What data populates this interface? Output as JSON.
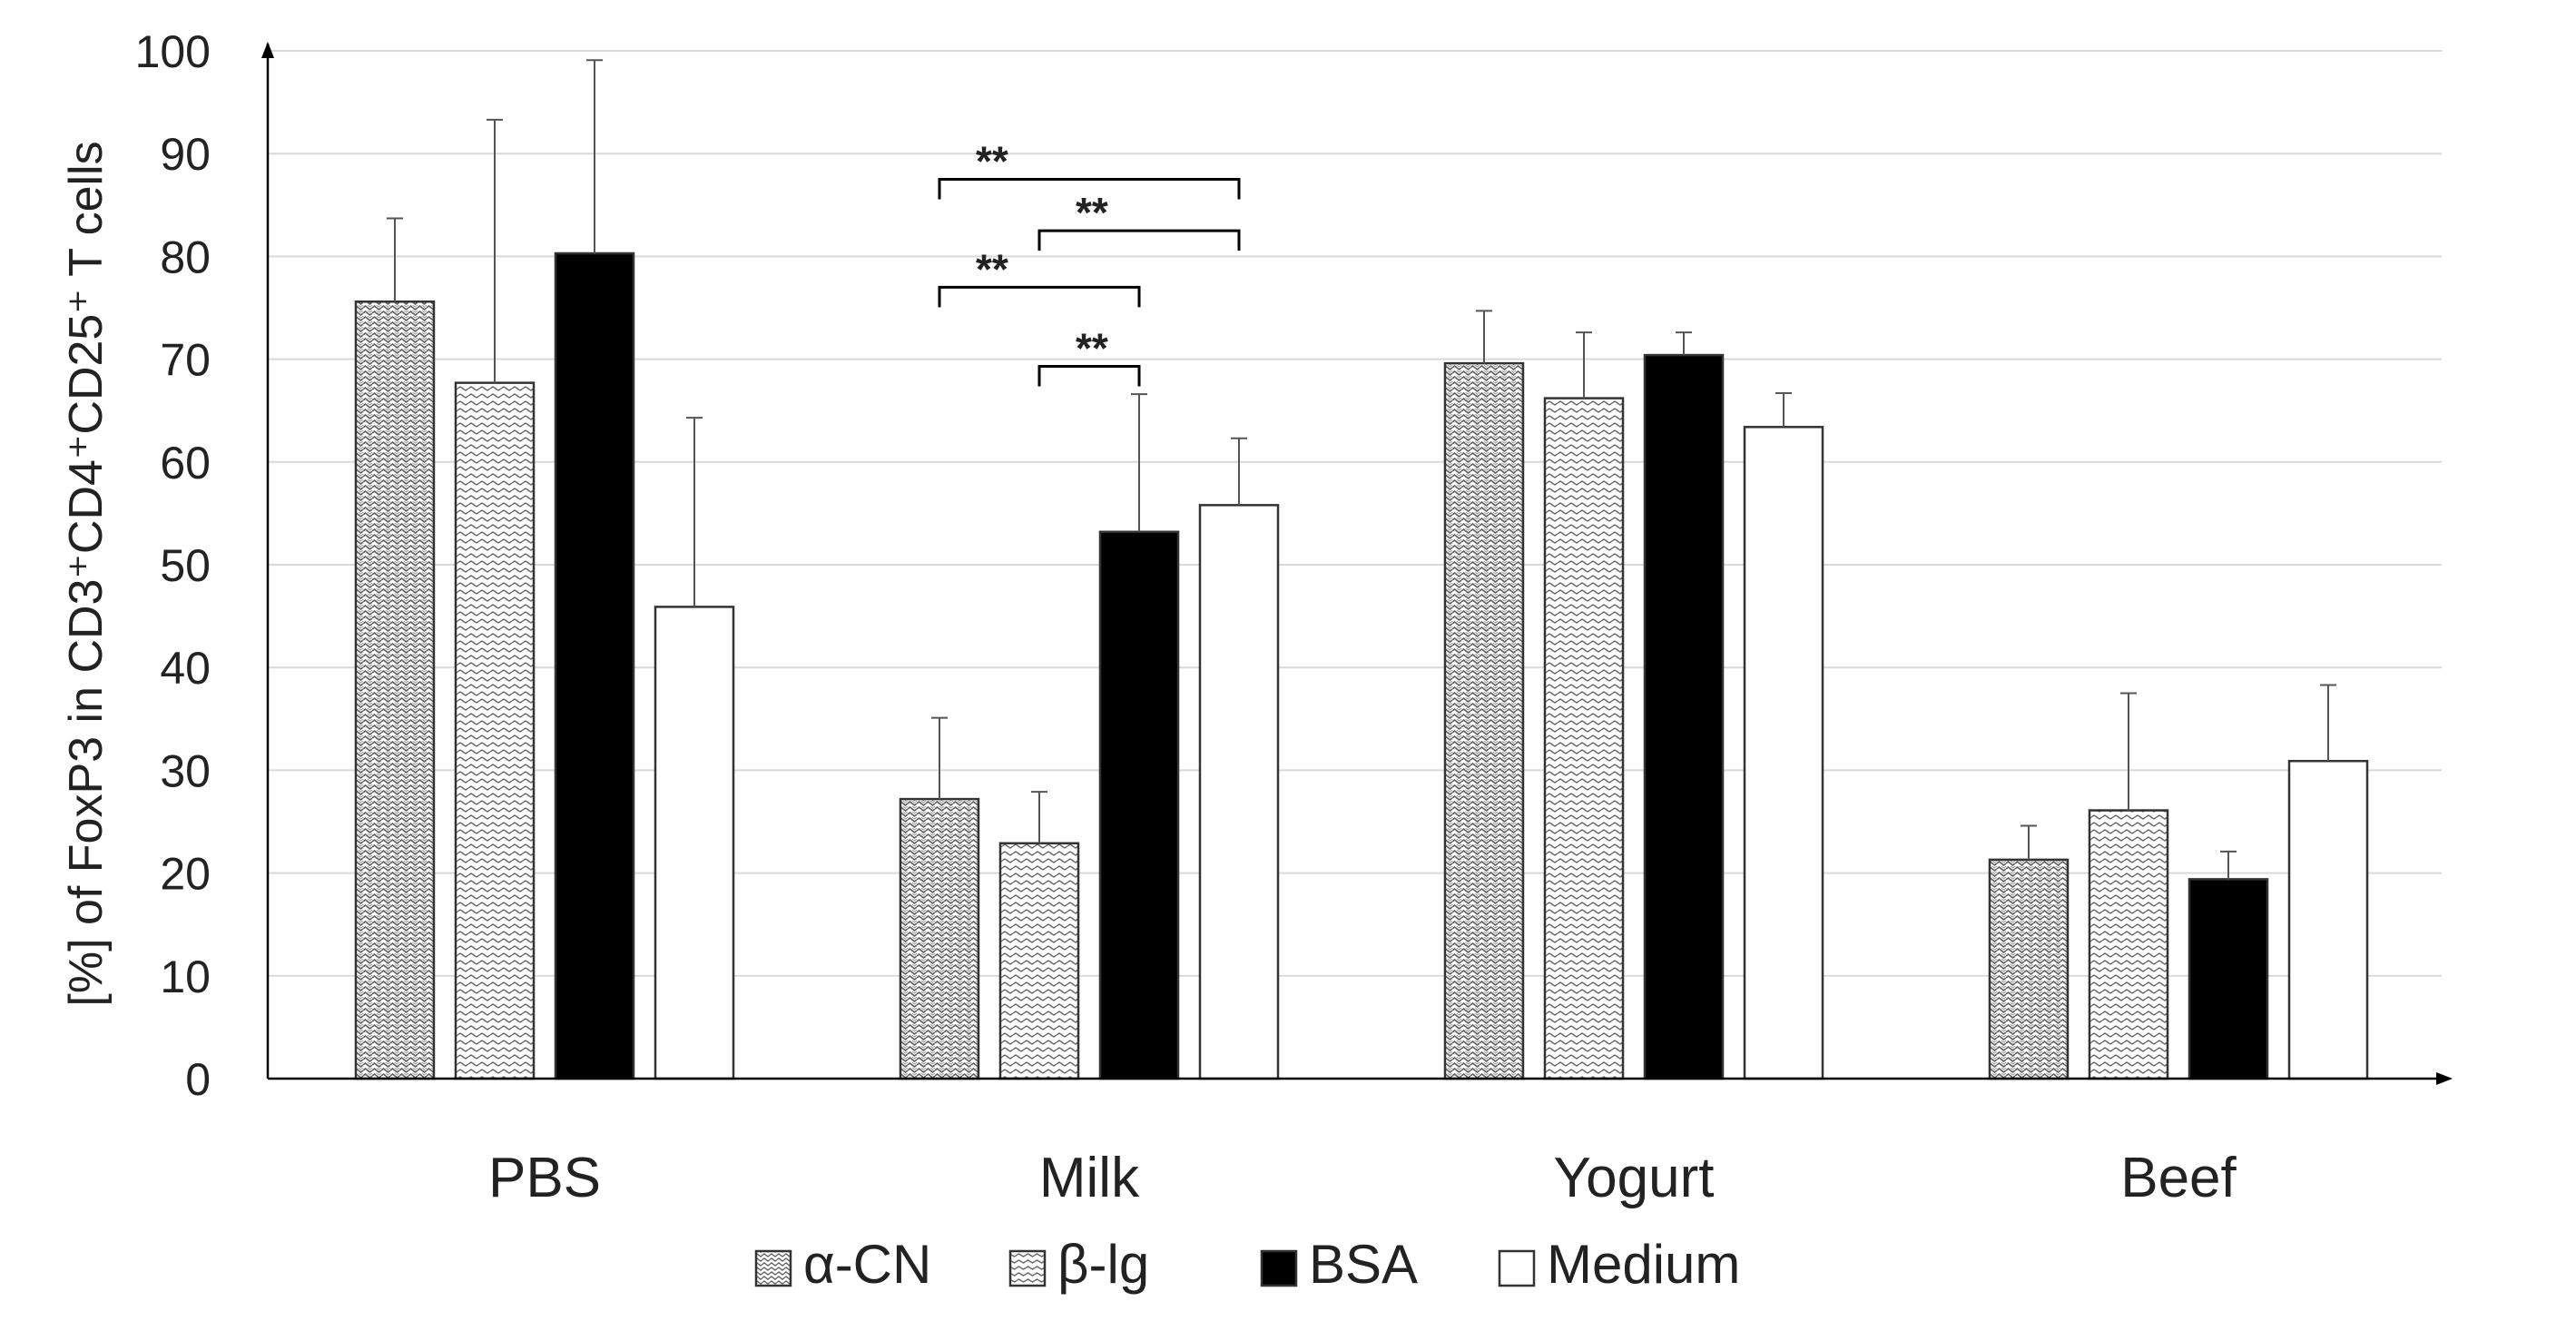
{
  "chart_data": {
    "type": "bar",
    "title": "",
    "xlabel": "",
    "ylabel": "[%] of FoxP3 in CD3⁺CD4⁺CD25⁺ T cells",
    "ylim": [
      0,
      100
    ],
    "yticks": [
      0,
      10,
      20,
      30,
      40,
      50,
      60,
      70,
      80,
      90,
      100
    ],
    "grid": true,
    "legend_position": "bottom-center",
    "categories": [
      "PBS",
      "Milk",
      "Yogurt",
      "Beef"
    ],
    "series": [
      {
        "name": "α-CN",
        "pattern": "dense-wave",
        "values": [
          75.6,
          27.2,
          69.6,
          21.3
        ],
        "errors": [
          8.1,
          7.9,
          5.1,
          3.3
        ]
      },
      {
        "name": "β-lg",
        "pattern": "horizontal-wave",
        "values": [
          67.7,
          22.9,
          66.2,
          26.1
        ],
        "errors": [
          25.6,
          5.0,
          6.4,
          11.4
        ]
      },
      {
        "name": "BSA",
        "pattern": "solid",
        "values": [
          80.3,
          53.2,
          70.4,
          19.4
        ],
        "errors": [
          18.8,
          13.4,
          2.2,
          2.7
        ]
      },
      {
        "name": "Medium",
        "pattern": "none",
        "values": [
          45.9,
          55.8,
          63.4,
          30.9
        ],
        "errors": [
          18.4,
          6.5,
          3.3,
          7.4
        ]
      }
    ],
    "annotations": [
      {
        "category": "Milk",
        "from_series": 0,
        "to_series": 3,
        "y": 87.5,
        "label": "**"
      },
      {
        "category": "Milk",
        "from_series": 1,
        "to_series": 3,
        "y": 82.5,
        "label": "**"
      },
      {
        "category": "Milk",
        "from_series": 0,
        "to_series": 2,
        "y": 77.0,
        "label": "**"
      },
      {
        "category": "Milk",
        "from_series": 1,
        "to_series": 2,
        "y": 69.3,
        "label": "**"
      }
    ],
    "colors": {
      "bar_stroke": "#333333",
      "solid_fill": "#000000",
      "empty_fill": "#ffffff",
      "pattern_ink": "#6a6a6a",
      "gridline": "#d9d9d9",
      "axis": "#000000",
      "error_bar": "#555555"
    }
  }
}
